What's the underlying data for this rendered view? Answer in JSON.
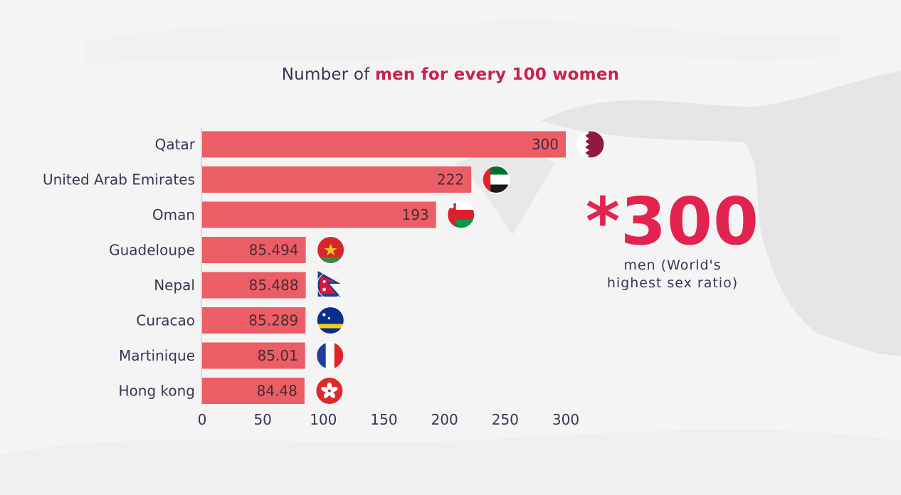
{
  "title": {
    "prefix": "Number of ",
    "highlight": "men for every 100 women"
  },
  "callout": {
    "value": "*300",
    "line1": "men (World's",
    "line2": "highest sex ratio)"
  },
  "colors": {
    "bar": "#eb5e65",
    "accent": "#e2234f",
    "text": "#3b3550"
  },
  "chart_data": {
    "type": "bar",
    "orientation": "horizontal",
    "title": "Number of men for every 100 women",
    "categories": [
      "Qatar",
      "United Arab Emirates",
      "Oman",
      "Guadeloupe",
      "Nepal",
      "Curacao",
      "Martinique",
      "Hong kong"
    ],
    "values": [
      300,
      222,
      193,
      85.494,
      85.488,
      85.289,
      85.01,
      84.48
    ],
    "value_labels": [
      "300",
      "222",
      "193",
      "85.494",
      "85.488",
      "85.289",
      "85.01",
      "84.48"
    ],
    "flags": [
      "qatar-flag-icon",
      "uae-flag-icon",
      "oman-flag-icon",
      "guadeloupe-flag-icon",
      "nepal-flag-icon",
      "curacao-flag-icon",
      "martinique-flag-icon",
      "hong-kong-flag-icon"
    ],
    "xlim": [
      0,
      300
    ],
    "xticks": [
      0,
      50,
      100,
      150,
      200,
      250,
      300
    ],
    "xlabel": "",
    "ylabel": "",
    "grid": false
  }
}
